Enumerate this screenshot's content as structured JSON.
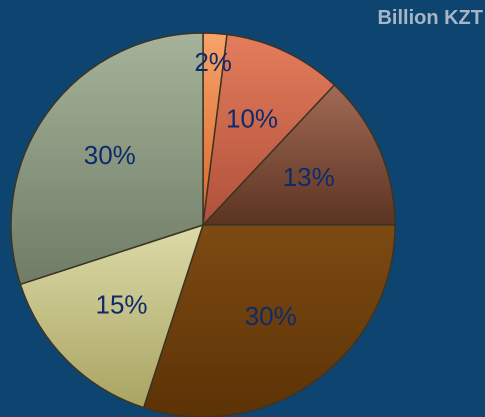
{
  "unit_label": "Billion KZT",
  "chart_data": {
    "type": "pie",
    "title": "",
    "unit": "Billion KZT",
    "start_angle_deg": 0,
    "direction": "clockwise",
    "legend": "none",
    "slices": [
      {
        "label": "2%",
        "value": 2,
        "color_top": "#f6a36a",
        "color_bottom": "#d9662a"
      },
      {
        "label": "10%",
        "value": 10,
        "color_top": "#e47d5c",
        "color_bottom": "#b0503a"
      },
      {
        "label": "13%",
        "value": 13,
        "color_top": "#a26a55",
        "color_bottom": "#5a3422"
      },
      {
        "label": "30%",
        "value": 30,
        "color_top": "#7d4a12",
        "color_bottom": "#5c3306"
      },
      {
        "label": "15%",
        "value": 15,
        "color_top": "#dcdaa8",
        "color_bottom": "#a9a462"
      },
      {
        "label": "30%",
        "value": 30,
        "color_top": "#a6b39a",
        "color_bottom": "#6f7c66"
      }
    ]
  }
}
